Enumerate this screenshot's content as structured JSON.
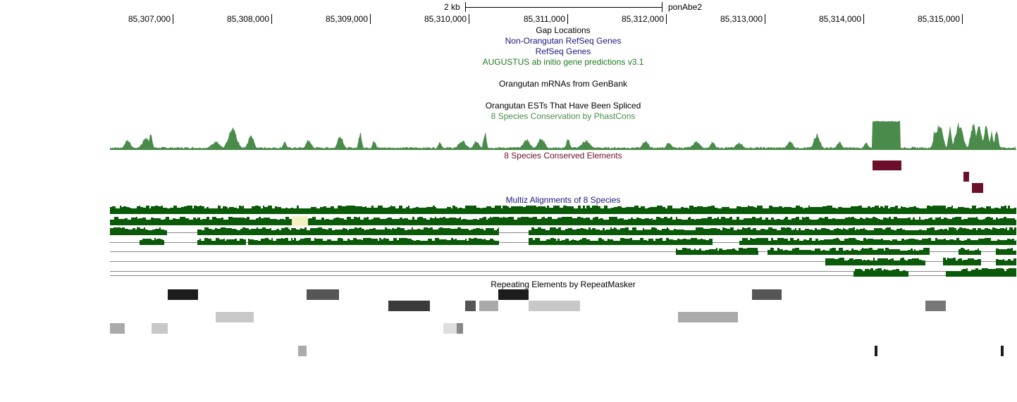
{
  "scale_bar": {
    "length_label": "2 kb",
    "assembly": "ponAbe2"
  },
  "ruler": {
    "ticks": [
      "85,307,000",
      "85,308,000",
      "85,309,000",
      "85,310,000",
      "85,311,000",
      "85,312,000",
      "85,313,000",
      "85,314,000",
      "85,315,000"
    ]
  },
  "tracks": {
    "gap": {
      "label": "Gap Locations",
      "color": "#000000"
    },
    "non_orangutan_refseq": {
      "label": "Non-Orangutan RefSeq Genes",
      "color": "#1a1a7a"
    },
    "refseq": {
      "label": "RefSeq Genes",
      "color": "#1a1a7a"
    },
    "augustus": {
      "label": "AUGUSTUS ab initio gene predictions v3.1",
      "color": "#1f7a1f"
    },
    "mrna": {
      "label": "Orangutan mRNAs from GenBank",
      "color": "#000000"
    },
    "est": {
      "label": "Orangutan ESTs That Have Been Spliced",
      "color": "#000000"
    },
    "phastcons": {
      "label": "8 Species Conservation by PhastCons",
      "color": "#4a8a4a"
    },
    "conserved": {
      "label": "8 Species Conserved Elements",
      "color": "#6b0f2a"
    },
    "multiz": {
      "label": "Multiz Alignments of 8 Species",
      "color": "#1a1a7a"
    },
    "rmsk": {
      "label": "Repeating Elements by RepeatMasker",
      "color": "#000000"
    }
  },
  "colors": {
    "conservation": "#4a8a4a",
    "alignment": "#0a5a0a",
    "element": "#6b0f2a",
    "highlight": "#f5f0c0"
  }
}
